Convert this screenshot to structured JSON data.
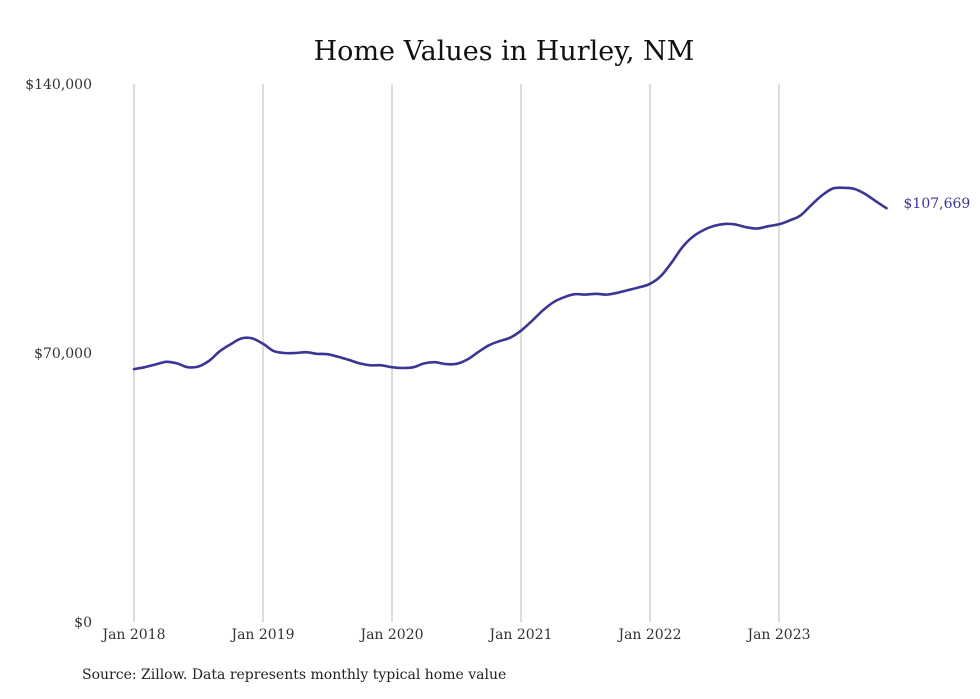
{
  "chart_data": {
    "type": "line",
    "title": "Home Values in Hurley, NM",
    "xlabel": "",
    "ylabel": "",
    "x_ticks": [
      "Jan 2018",
      "Jan 2019",
      "Jan 2020",
      "Jan 2021",
      "Jan 2022",
      "Jan 2023"
    ],
    "y_ticks": [
      "$140,000",
      "$70,000",
      "$0"
    ],
    "y_tick_values": [
      140000,
      70000,
      0
    ],
    "ylim": [
      0,
      140000
    ],
    "xlim": [
      "2018-01",
      "2023-12"
    ],
    "grid": "vertical",
    "series": [
      {
        "color": "#3b3593",
        "end_label": "$107,669",
        "points": [
          [
            "2018-01",
            65800
          ],
          [
            "2018-02",
            66300
          ],
          [
            "2018-03",
            67000
          ],
          [
            "2018-04",
            67700
          ],
          [
            "2018-05",
            67300
          ],
          [
            "2018-06",
            66300
          ],
          [
            "2018-07",
            66500
          ],
          [
            "2018-08",
            68000
          ],
          [
            "2018-09",
            70500
          ],
          [
            "2018-10",
            72300
          ],
          [
            "2018-11",
            73800
          ],
          [
            "2018-12",
            73800
          ],
          [
            "2019-01",
            72400
          ],
          [
            "2019-02",
            70500
          ],
          [
            "2019-03",
            70000
          ],
          [
            "2019-04",
            70000
          ],
          [
            "2019-05",
            70200
          ],
          [
            "2019-06",
            69800
          ],
          [
            "2019-07",
            69700
          ],
          [
            "2019-08",
            69000
          ],
          [
            "2019-09",
            68200
          ],
          [
            "2019-10",
            67300
          ],
          [
            "2019-11",
            66800
          ],
          [
            "2019-12",
            66800
          ],
          [
            "2020-01",
            66300
          ],
          [
            "2020-02",
            66100
          ],
          [
            "2020-03",
            66300
          ],
          [
            "2020-04",
            67300
          ],
          [
            "2020-05",
            67600
          ],
          [
            "2020-06",
            67100
          ],
          [
            "2020-07",
            67200
          ],
          [
            "2020-08",
            68300
          ],
          [
            "2020-09",
            70200
          ],
          [
            "2020-10",
            72000
          ],
          [
            "2020-11",
            73100
          ],
          [
            "2020-12",
            74000
          ],
          [
            "2021-01",
            75800
          ],
          [
            "2021-02",
            78300
          ],
          [
            "2021-03",
            81000
          ],
          [
            "2021-04",
            83200
          ],
          [
            "2021-05",
            84500
          ],
          [
            "2021-06",
            85300
          ],
          [
            "2021-07",
            85200
          ],
          [
            "2021-08",
            85400
          ],
          [
            "2021-09",
            85200
          ],
          [
            "2021-10",
            85700
          ],
          [
            "2021-11",
            86400
          ],
          [
            "2021-12",
            87100
          ],
          [
            "2022-01",
            88000
          ],
          [
            "2022-02",
            90000
          ],
          [
            "2022-03",
            93500
          ],
          [
            "2022-04",
            97500
          ],
          [
            "2022-05",
            100300
          ],
          [
            "2022-06",
            102000
          ],
          [
            "2022-07",
            103100
          ],
          [
            "2022-08",
            103600
          ],
          [
            "2022-09",
            103400
          ],
          [
            "2022-10",
            102700
          ],
          [
            "2022-11",
            102400
          ],
          [
            "2022-12",
            103000
          ],
          [
            "2023-01",
            103500
          ],
          [
            "2023-02",
            104500
          ],
          [
            "2023-03",
            105800
          ],
          [
            "2023-04",
            108500
          ],
          [
            "2023-05",
            111000
          ],
          [
            "2023-06",
            112800
          ],
          [
            "2023-07",
            113000
          ],
          [
            "2023-08",
            112700
          ],
          [
            "2023-09",
            111400
          ],
          [
            "2023-10",
            109500
          ],
          [
            "2023-11",
            107669
          ]
        ]
      }
    ]
  },
  "footer": {
    "source": "Source: Zillow. Data represents monthly typical home value"
  }
}
